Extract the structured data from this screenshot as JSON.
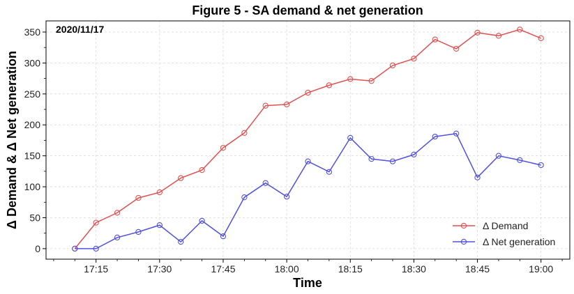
{
  "chart_data": {
    "type": "line",
    "title": "Figure 5 - SA demand & net generation",
    "xlabel": "Time",
    "ylabel": "Δ Demand & Δ Net generation",
    "annotation": "2020/11/17",
    "x": [
      "17:10",
      "17:15",
      "17:20",
      "17:25",
      "17:30",
      "17:35",
      "17:40",
      "17:45",
      "17:50",
      "17:55",
      "18:00",
      "18:05",
      "18:10",
      "18:15",
      "18:20",
      "18:25",
      "18:30",
      "18:35",
      "18:40",
      "18:45",
      "18:50",
      "18:55",
      "19:00"
    ],
    "xticks": [
      "17:15",
      "17:30",
      "17:45",
      "18:00",
      "18:15",
      "18:30",
      "18:45",
      "19:00"
    ],
    "ylim": [
      -17,
      368
    ],
    "yticks": [
      0,
      50,
      100,
      150,
      200,
      250,
      300,
      350
    ],
    "grid": true,
    "legend_position": "bottom-right",
    "series": [
      {
        "name": "Δ Demand",
        "color": "#e05050",
        "values": [
          0,
          42,
          58,
          82,
          91,
          114,
          127,
          163,
          187,
          231,
          233,
          252,
          264,
          274,
          271,
          296,
          307,
          338,
          323,
          349,
          344,
          354,
          340
        ]
      },
      {
        "name": "Δ Net generation",
        "color": "#5050e0",
        "values": [
          0,
          0,
          18,
          27,
          38,
          11,
          45,
          20,
          83,
          106,
          84,
          141,
          124,
          179,
          145,
          141,
          152,
          181,
          186,
          115,
          150,
          143,
          135
        ]
      }
    ]
  }
}
